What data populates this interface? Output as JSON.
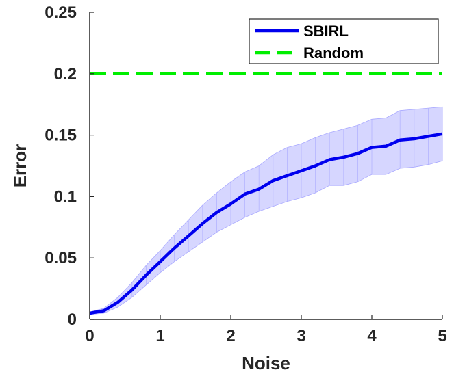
{
  "chart_data": {
    "type": "line",
    "xlabel": "Noise",
    "ylabel": "Error",
    "xlim": [
      0,
      5
    ],
    "ylim": [
      0,
      0.25
    ],
    "xticks": [
      "0",
      "1",
      "2",
      "3",
      "4",
      "5"
    ],
    "yticks": [
      "0",
      "0.05",
      "0.1",
      "0.15",
      "0.2",
      "0.25"
    ],
    "grid": false,
    "legend_position": "top-right",
    "series": [
      {
        "name": "SBIRL",
        "color": "#0000ee",
        "style": "solid",
        "x": [
          0,
          0.2,
          0.4,
          0.6,
          0.8,
          1.0,
          1.2,
          1.4,
          1.6,
          1.8,
          2.0,
          2.2,
          2.4,
          2.6,
          2.8,
          3.0,
          3.2,
          3.4,
          3.6,
          3.8,
          4.0,
          4.2,
          4.4,
          4.6,
          4.8,
          5.0
        ],
        "y": [
          0.005,
          0.007,
          0.014,
          0.024,
          0.036,
          0.047,
          0.058,
          0.068,
          0.078,
          0.087,
          0.094,
          0.102,
          0.106,
          0.113,
          0.117,
          0.121,
          0.125,
          0.13,
          0.132,
          0.135,
          0.14,
          0.141,
          0.146,
          0.147,
          0.149,
          0.151
        ],
        "lower": [
          0.004,
          0.005,
          0.01,
          0.018,
          0.028,
          0.038,
          0.047,
          0.055,
          0.063,
          0.071,
          0.077,
          0.083,
          0.088,
          0.092,
          0.096,
          0.099,
          0.103,
          0.109,
          0.109,
          0.112,
          0.118,
          0.118,
          0.123,
          0.124,
          0.126,
          0.129
        ],
        "upper": [
          0.006,
          0.009,
          0.018,
          0.03,
          0.044,
          0.056,
          0.069,
          0.081,
          0.093,
          0.103,
          0.112,
          0.12,
          0.125,
          0.134,
          0.14,
          0.143,
          0.148,
          0.152,
          0.155,
          0.158,
          0.163,
          0.164,
          0.17,
          0.171,
          0.172,
          0.173
        ],
        "band_color": "#c8c8ff"
      },
      {
        "name": "Random",
        "color": "#00ee00",
        "style": "dashed",
        "x": [
          0,
          5
        ],
        "y": [
          0.2,
          0.2
        ]
      }
    ]
  }
}
